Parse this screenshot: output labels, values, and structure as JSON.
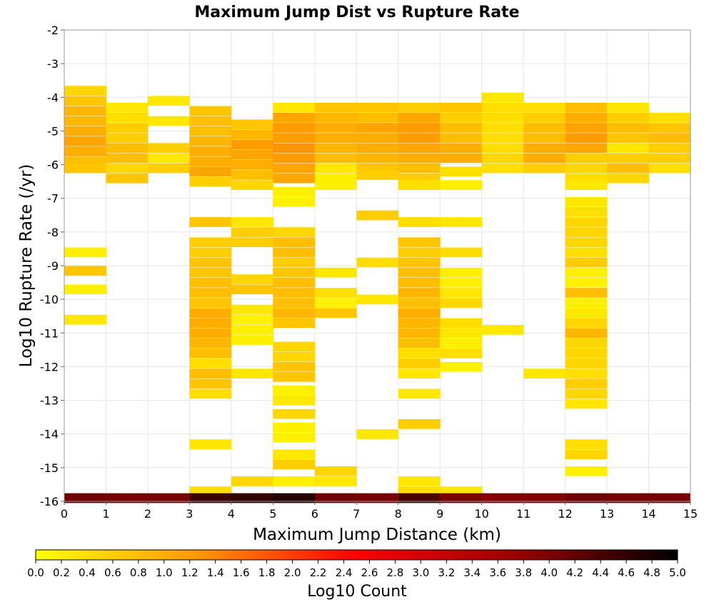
{
  "chart_data": {
    "type": "heatmap",
    "title": "Maximum Jump Dist vs Rupture Rate",
    "xlabel": "Maximum Jump Distance (km)",
    "ylabel": "Log10 Rupture Rate (/yr)",
    "xlim": [
      0,
      15
    ],
    "ylim": [
      -16,
      -2
    ],
    "x_ticks": [
      "0",
      "1",
      "2",
      "3",
      "4",
      "5",
      "6",
      "7",
      "8",
      "9",
      "10",
      "11",
      "12",
      "13",
      "14",
      "15"
    ],
    "y_ticks": [
      "-2",
      "-3",
      "-4",
      "-5",
      "-6",
      "-7",
      "-8",
      "-9",
      "-10",
      "-11",
      "-12",
      "-13",
      "-14",
      "-15",
      "-16"
    ],
    "grid": true,
    "x_bin_width_km": 1,
    "y_bin_height": 0.28,
    "colorbar": {
      "label": "Log10 Count",
      "range": [
        0.0,
        5.0
      ],
      "ticks": [
        "0.0",
        "0.2",
        "0.4",
        "0.6",
        "0.8",
        "1.0",
        "1.2",
        "1.4",
        "1.6",
        "1.8",
        "2.0",
        "2.2",
        "2.4",
        "2.6",
        "2.8",
        "3.0",
        "3.2",
        "3.4",
        "3.6",
        "3.8",
        "4.0",
        "4.2",
        "4.4",
        "4.6",
        "4.8",
        "5.0"
      ],
      "colormap": [
        "#ffff00",
        "#ff9900",
        "#ff0000",
        "#990000",
        "#000000"
      ]
    },
    "columns": [
      {
        "x_start": 0,
        "cells": [
          [
            -3.8,
            0.5
          ],
          [
            -4.1,
            0.7
          ],
          [
            -4.4,
            0.9
          ],
          [
            -4.7,
            0.9
          ],
          [
            -5.0,
            1.0
          ],
          [
            -5.3,
            1.1
          ],
          [
            -5.6,
            1.0
          ],
          [
            -5.9,
            0.8
          ],
          [
            -6.1,
            0.7
          ],
          [
            -8.6,
            0.2
          ],
          [
            -9.15,
            0.7
          ],
          [
            -9.7,
            0.2
          ],
          [
            -10.6,
            0.3
          ],
          [
            -15.9,
            4.1
          ]
        ]
      },
      {
        "x_start": 1,
        "cells": [
          [
            -4.3,
            0.3
          ],
          [
            -4.6,
            0.4
          ],
          [
            -4.9,
            0.6
          ],
          [
            -5.2,
            0.6
          ],
          [
            -5.5,
            0.8
          ],
          [
            -5.8,
            0.8
          ],
          [
            -6.1,
            0.5
          ],
          [
            -6.4,
            0.7
          ],
          [
            -15.9,
            4.0
          ]
        ]
      },
      {
        "x_start": 2,
        "cells": [
          [
            -4.1,
            0.3
          ],
          [
            -4.7,
            0.3
          ],
          [
            -5.5,
            0.6
          ],
          [
            -5.8,
            0.3
          ],
          [
            -6.1,
            0.6
          ],
          [
            -15.9,
            4.0
          ]
        ]
      },
      {
        "x_start": 3,
        "cells": [
          [
            -4.4,
            0.7
          ],
          [
            -4.7,
            0.8
          ],
          [
            -5.0,
            0.8
          ],
          [
            -5.3,
            0.9
          ],
          [
            -5.6,
            1.0
          ],
          [
            -5.9,
            1.0
          ],
          [
            -6.2,
            1.1
          ],
          [
            -6.5,
            0.6
          ],
          [
            -7.7,
            0.7
          ],
          [
            -8.3,
            0.6
          ],
          [
            -8.6,
            0.6
          ],
          [
            -8.9,
            0.7
          ],
          [
            -9.2,
            0.7
          ],
          [
            -9.5,
            0.8
          ],
          [
            -9.8,
            0.8
          ],
          [
            -10.1,
            0.7
          ],
          [
            -10.4,
            1.0
          ],
          [
            -10.7,
            1.0
          ],
          [
            -11.0,
            1.0
          ],
          [
            -11.3,
            0.9
          ],
          [
            -11.6,
            0.8
          ],
          [
            -11.9,
            0.4
          ],
          [
            -12.2,
            0.8
          ],
          [
            -12.5,
            0.7
          ],
          [
            -12.8,
            0.4
          ],
          [
            -14.3,
            0.3
          ],
          [
            -15.7,
            0.4
          ],
          [
            -15.9,
            4.5
          ]
        ]
      },
      {
        "x_start": 4,
        "cells": [
          [
            -4.8,
            0.7
          ],
          [
            -5.1,
            0.9
          ],
          [
            -5.4,
            1.2
          ],
          [
            -5.7,
            1.1
          ],
          [
            -6.0,
            1.0
          ],
          [
            -6.3,
            0.8
          ],
          [
            -6.6,
            0.5
          ],
          [
            -7.7,
            0.3
          ],
          [
            -8.0,
            0.6
          ],
          [
            -8.3,
            0.6
          ],
          [
            -9.4,
            0.5
          ],
          [
            -9.7,
            0.7
          ],
          [
            -10.3,
            0.3
          ],
          [
            -10.6,
            0.2
          ],
          [
            -10.9,
            0.2
          ],
          [
            -11.2,
            0.2
          ],
          [
            -12.2,
            0.3
          ],
          [
            -15.4,
            0.5
          ],
          [
            -15.9,
            4.6
          ]
        ]
      },
      {
        "x_start": 5,
        "cells": [
          [
            -4.3,
            0.3
          ],
          [
            -4.6,
            1.1
          ],
          [
            -4.9,
            1.2
          ],
          [
            -5.2,
            1.2
          ],
          [
            -5.5,
            1.3
          ],
          [
            -5.8,
            1.2
          ],
          [
            -6.1,
            1.1
          ],
          [
            -6.4,
            1.1
          ],
          [
            -6.8,
            0.2
          ],
          [
            -7.1,
            0.2
          ],
          [
            -8.0,
            0.5
          ],
          [
            -8.3,
            0.8
          ],
          [
            -8.6,
            0.8
          ],
          [
            -8.9,
            0.6
          ],
          [
            -9.2,
            0.7
          ],
          [
            -9.5,
            0.8
          ],
          [
            -9.8,
            0.8
          ],
          [
            -10.1,
            0.8
          ],
          [
            -10.4,
            0.9
          ],
          [
            -10.7,
            0.7
          ],
          [
            -11.4,
            0.5
          ],
          [
            -11.7,
            0.5
          ],
          [
            -12.0,
            0.7
          ],
          [
            -12.3,
            0.7
          ],
          [
            -12.7,
            0.2
          ],
          [
            -13.0,
            0.3
          ],
          [
            -13.4,
            0.5
          ],
          [
            -13.8,
            0.2
          ],
          [
            -14.1,
            0.2
          ],
          [
            -14.6,
            0.3
          ],
          [
            -14.9,
            0.6
          ],
          [
            -15.4,
            0.2
          ],
          [
            -15.9,
            4.7
          ]
        ]
      },
      {
        "x_start": 6,
        "cells": [
          [
            -4.3,
            0.7
          ],
          [
            -4.6,
            0.9
          ],
          [
            -4.9,
            1.0
          ],
          [
            -5.2,
            1.0
          ],
          [
            -5.5,
            0.9
          ],
          [
            -5.8,
            0.8
          ],
          [
            -6.1,
            0.3
          ],
          [
            -6.4,
            0.2
          ],
          [
            -6.6,
            0.2
          ],
          [
            -9.2,
            0.3
          ],
          [
            -9.8,
            0.4
          ],
          [
            -10.1,
            0.2
          ],
          [
            -10.4,
            0.7
          ],
          [
            -15.1,
            0.5
          ],
          [
            -15.4,
            0.3
          ],
          [
            -15.9,
            4.1
          ]
        ]
      },
      {
        "x_start": 7,
        "cells": [
          [
            -4.3,
            0.7
          ],
          [
            -4.6,
            0.8
          ],
          [
            -4.9,
            1.1
          ],
          [
            -5.2,
            1.0
          ],
          [
            -5.5,
            1.0
          ],
          [
            -5.8,
            0.9
          ],
          [
            -6.1,
            0.7
          ],
          [
            -6.3,
            0.6
          ],
          [
            -7.5,
            0.6
          ],
          [
            -8.9,
            0.4
          ],
          [
            -10.0,
            0.3
          ],
          [
            -14.0,
            0.3
          ],
          [
            -15.9,
            4.0
          ]
        ]
      },
      {
        "x_start": 8,
        "cells": [
          [
            -4.3,
            0.6
          ],
          [
            -4.6,
            1.1
          ],
          [
            -4.9,
            1.2
          ],
          [
            -5.2,
            1.2
          ],
          [
            -5.5,
            1.1
          ],
          [
            -5.8,
            1.0
          ],
          [
            -6.1,
            0.8
          ],
          [
            -6.4,
            0.6
          ],
          [
            -6.6,
            0.4
          ],
          [
            -7.7,
            0.4
          ],
          [
            -8.3,
            0.7
          ],
          [
            -8.6,
            0.6
          ],
          [
            -8.9,
            0.7
          ],
          [
            -9.2,
            0.8
          ],
          [
            -9.5,
            0.8
          ],
          [
            -9.8,
            0.9
          ],
          [
            -10.1,
            0.8
          ],
          [
            -10.4,
            1.0
          ],
          [
            -10.7,
            0.9
          ],
          [
            -11.0,
            0.9
          ],
          [
            -11.3,
            0.8
          ],
          [
            -11.6,
            0.4
          ],
          [
            -11.9,
            0.6
          ],
          [
            -12.2,
            0.3
          ],
          [
            -12.8,
            0.3
          ],
          [
            -13.7,
            0.6
          ],
          [
            -15.4,
            0.3
          ],
          [
            -15.7,
            0.4
          ],
          [
            -15.9,
            4.4
          ]
        ]
      },
      {
        "x_start": 9,
        "cells": [
          [
            -4.3,
            0.7
          ],
          [
            -4.6,
            0.6
          ],
          [
            -4.9,
            0.8
          ],
          [
            -5.2,
            0.8
          ],
          [
            -5.5,
            1.0
          ],
          [
            -5.8,
            1.0
          ],
          [
            -6.2,
            0.4
          ],
          [
            -6.6,
            0.2
          ],
          [
            -7.7,
            0.3
          ],
          [
            -8.6,
            0.4
          ],
          [
            -9.2,
            0.2
          ],
          [
            -9.5,
            0.2
          ],
          [
            -9.8,
            0.3
          ],
          [
            -10.1,
            0.5
          ],
          [
            -10.7,
            0.4
          ],
          [
            -11.0,
            0.3
          ],
          [
            -11.3,
            0.2
          ],
          [
            -11.6,
            0.4
          ],
          [
            -12.0,
            0.2
          ],
          [
            -15.7,
            0.3
          ],
          [
            -15.9,
            4.0
          ]
        ]
      },
      {
        "x_start": 10,
        "cells": [
          [
            -4.0,
            0.3
          ],
          [
            -4.3,
            0.4
          ],
          [
            -4.6,
            0.4
          ],
          [
            -4.9,
            0.4
          ],
          [
            -5.2,
            0.4
          ],
          [
            -5.5,
            0.4
          ],
          [
            -5.8,
            0.5
          ],
          [
            -6.1,
            0.4
          ],
          [
            -10.9,
            0.3
          ],
          [
            -15.9,
            3.9
          ]
        ]
      },
      {
        "x_start": 11,
        "cells": [
          [
            -4.3,
            0.4
          ],
          [
            -4.6,
            0.6
          ],
          [
            -4.9,
            0.8
          ],
          [
            -5.2,
            0.8
          ],
          [
            -5.5,
            1.0
          ],
          [
            -5.8,
            1.0
          ],
          [
            -6.1,
            0.6
          ],
          [
            -12.2,
            0.3
          ],
          [
            -15.9,
            3.9
          ]
        ]
      },
      {
        "x_start": 12,
        "cells": [
          [
            -4.3,
            0.8
          ],
          [
            -4.6,
            1.0
          ],
          [
            -4.9,
            1.1
          ],
          [
            -5.2,
            1.2
          ],
          [
            -5.5,
            1.1
          ],
          [
            -5.8,
            0.6
          ],
          [
            -6.1,
            0.5
          ],
          [
            -6.4,
            0.4
          ],
          [
            -6.6,
            0.3
          ],
          [
            -7.1,
            0.3
          ],
          [
            -7.4,
            0.4
          ],
          [
            -7.7,
            0.5
          ],
          [
            -8.0,
            0.5
          ],
          [
            -8.3,
            0.5
          ],
          [
            -8.6,
            0.4
          ],
          [
            -8.9,
            0.6
          ],
          [
            -9.2,
            0.2
          ],
          [
            -9.5,
            0.2
          ],
          [
            -9.8,
            0.8
          ],
          [
            -10.1,
            0.2
          ],
          [
            -10.4,
            0.3
          ],
          [
            -10.7,
            0.5
          ],
          [
            -11.0,
            0.9
          ],
          [
            -11.3,
            0.5
          ],
          [
            -11.6,
            0.5
          ],
          [
            -11.9,
            0.5
          ],
          [
            -12.2,
            0.4
          ],
          [
            -12.5,
            0.6
          ],
          [
            -12.8,
            0.5
          ],
          [
            -13.1,
            0.3
          ],
          [
            -14.3,
            0.4
          ],
          [
            -14.6,
            0.5
          ],
          [
            -15.1,
            0.2
          ],
          [
            -15.9,
            4.1
          ]
        ]
      },
      {
        "x_start": 13,
        "cells": [
          [
            -4.3,
            0.3
          ],
          [
            -4.6,
            0.6
          ],
          [
            -4.9,
            0.8
          ],
          [
            -5.2,
            0.7
          ],
          [
            -5.5,
            0.3
          ],
          [
            -5.8,
            0.6
          ],
          [
            -6.1,
            0.8
          ],
          [
            -6.4,
            0.5
          ],
          [
            -15.9,
            4.0
          ]
        ]
      },
      {
        "x_start": 14,
        "cells": [
          [
            -4.6,
            0.4
          ],
          [
            -4.9,
            0.7
          ],
          [
            -5.2,
            0.8
          ],
          [
            -5.5,
            0.6
          ],
          [
            -5.8,
            0.6
          ],
          [
            -6.1,
            0.4
          ],
          [
            -15.9,
            4.0
          ]
        ]
      }
    ]
  }
}
